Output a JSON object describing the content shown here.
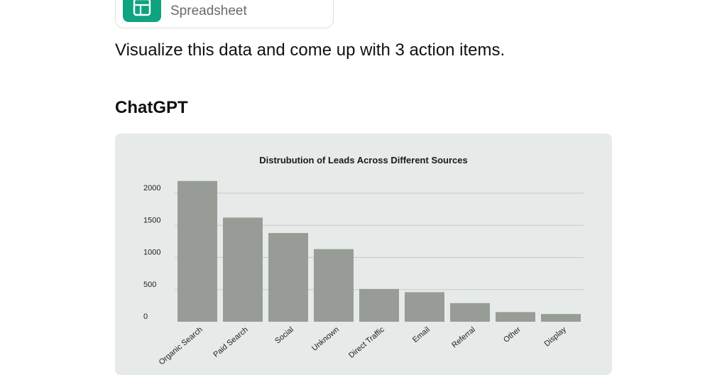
{
  "attachment": {
    "name": "",
    "type_label": "Spreadsheet",
    "icon": "spreadsheet-icon",
    "icon_color": "#10a37f"
  },
  "user_message": "Visualize this data and come up with 3 action items.",
  "assistant_name": "ChatGPT",
  "chart_data": {
    "type": "bar",
    "title": "Distrubution of Leads Across Different Sources",
    "xlabel": "",
    "ylabel": "",
    "categories": [
      "Organic Search",
      "Paid Search",
      "Social",
      "Unknown",
      "Direct Traffic",
      "Email",
      "Referral",
      "Other",
      "Display"
    ],
    "values": [
      2190,
      1620,
      1380,
      1130,
      510,
      460,
      290,
      150,
      120
    ],
    "yticks": [
      "0",
      "500",
      "1000",
      "1500",
      "2000"
    ],
    "ylim": [
      0,
      2000
    ],
    "grid": true,
    "bar_color": "#979d96",
    "grid_color": "#c5c9c7",
    "panel_color": "#e6eae8"
  }
}
